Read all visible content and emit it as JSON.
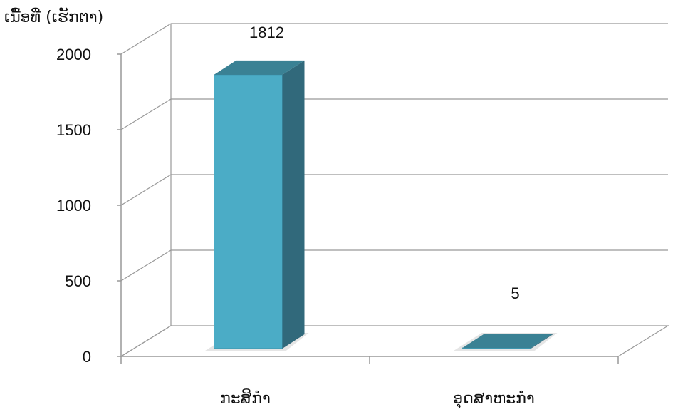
{
  "chart_data": {
    "type": "bar",
    "categories": [
      "ກະສິກຳ",
      "ອຸດສາຫະກຳ"
    ],
    "values": [
      1812,
      5
    ],
    "ylabel": "ເນື້ອທີ່ (ເຮັກຕາ)",
    "ylim": [
      0,
      2000
    ],
    "yticks": [
      0,
      500,
      1000,
      1500,
      2000
    ],
    "data_labels": [
      "1812",
      "5"
    ],
    "grid": true,
    "legend": "none",
    "colors": {
      "front": "#4BACC6",
      "side": "#31697B",
      "top": "#3A8194",
      "grid": "#999999",
      "floor_shadow": "#cfcfcf"
    }
  }
}
